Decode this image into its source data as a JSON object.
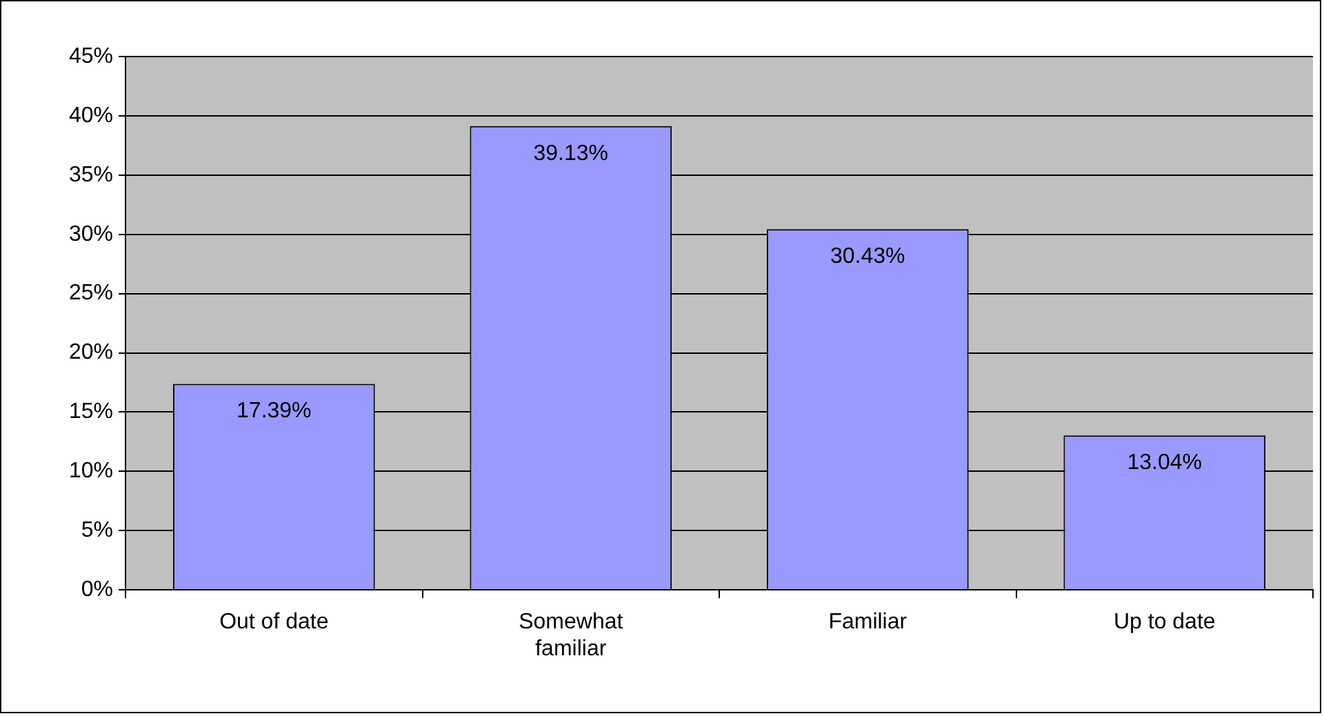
{
  "chart_data": {
    "type": "bar",
    "categories": [
      "Out of date",
      "Somewhat familiar",
      "Familiar",
      "Up to date"
    ],
    "values": [
      17.39,
      39.13,
      30.43,
      13.04
    ],
    "color": "#9999ff",
    "ylim": [
      0,
      45
    ],
    "yticks": [
      {
        "value": 0,
        "label": "0%"
      },
      {
        "value": 5,
        "label": "5%"
      },
      {
        "value": 10,
        "label": "10%"
      },
      {
        "value": 15,
        "label": "15%"
      },
      {
        "value": 20,
        "label": "20%"
      },
      {
        "value": 25,
        "label": "25%"
      },
      {
        "value": 30,
        "label": "30%"
      },
      {
        "value": 35,
        "label": "35%"
      },
      {
        "value": 40,
        "label": "40%"
      },
      {
        "value": 45,
        "label": "45%"
      }
    ],
    "value_labels": [
      "17.39%",
      "39.13%",
      "30.43%",
      "13.04%"
    ],
    "grid": "y",
    "legend": false
  }
}
